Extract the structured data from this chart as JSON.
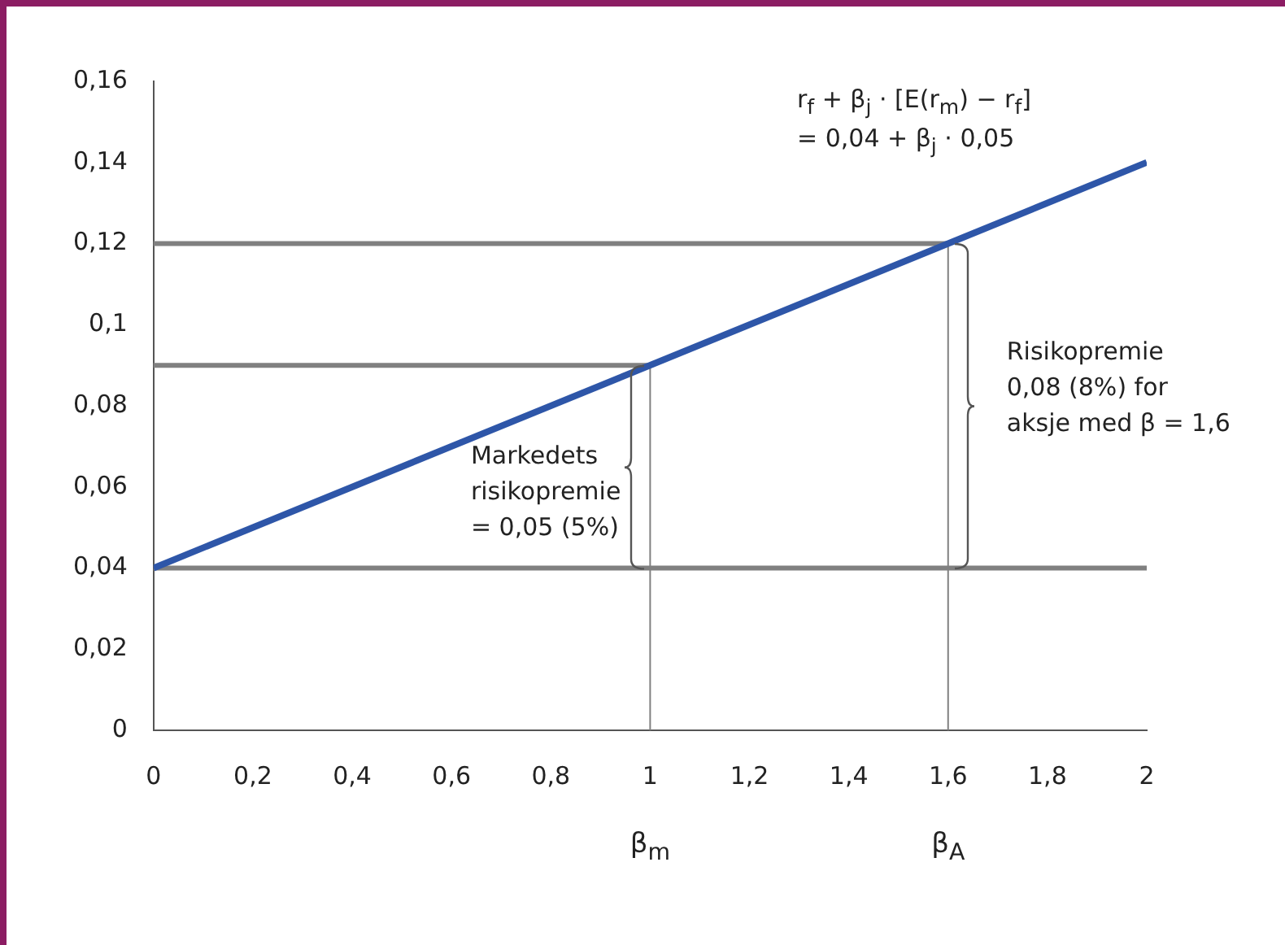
{
  "chart_data": {
    "type": "line",
    "x": [
      0,
      2
    ],
    "series": [
      {
        "color": "#2e56a8",
        "values": [
          0.04,
          0.14
        ]
      }
    ],
    "xlim": [
      0,
      2
    ],
    "ylim": [
      0,
      0.16
    ],
    "xticks": [
      0,
      {
        "value": 0.2,
        "label": "0,2"
      },
      {
        "value": 0.4,
        "label": "0,4"
      },
      {
        "value": 0.6,
        "label": "0,6"
      },
      {
        "value": 0.8,
        "label": "0,8"
      },
      1,
      {
        "value": 1.2,
        "label": "1,2"
      },
      {
        "value": 1.4,
        "label": "1,4"
      },
      {
        "value": 1.6,
        "label": "1,6"
      },
      {
        "value": 1.8,
        "label": "1,8"
      },
      2
    ],
    "yticks": [
      0,
      {
        "value": 0.02,
        "label": "0,02"
      },
      {
        "value": 0.04,
        "label": "0,04"
      },
      {
        "value": 0.06,
        "label": "0,06"
      },
      {
        "value": 0.08,
        "label": "0,08"
      },
      {
        "value": 0.1,
        "label": "0,1"
      },
      {
        "value": 0.12,
        "label": "0,12"
      },
      {
        "value": 0.14,
        "label": "0,14"
      },
      {
        "value": 0.16,
        "label": "0,16"
      }
    ],
    "grid": false,
    "legend": false,
    "marker": "none",
    "line_style": "solid",
    "ref_lines": [
      {
        "axis": "y",
        "value": 0.04,
        "color": "#808080"
      },
      {
        "axis": "y",
        "value": 0.09,
        "color": "#808080"
      },
      {
        "axis": "y",
        "value": 0.12,
        "color": "#808080"
      },
      {
        "axis": "x",
        "value": 1,
        "color": "#808080"
      },
      {
        "axis": "x",
        "value": 1.6,
        "color": "#808080"
      }
    ],
    "annotations": [
      "β$_{m}$",
      "β$_{A}$",
      "r$_{f}$ + β$_{j}$ · [E(r$_{m}$) − r$_{f}$]",
      "= 0,04 + β$_{j}$ · 0,05",
      {
        "text": "Markedets\nrisikopremie\n= 0,05 (5%)",
        "x": 1,
        "y": 0.06
      },
      {
        "text": "Risikopremie\n0,08 (8%) for\naksje med β = 1,6",
        "x": 1.6,
        "y": 0.08
      }
    ]
  }
}
